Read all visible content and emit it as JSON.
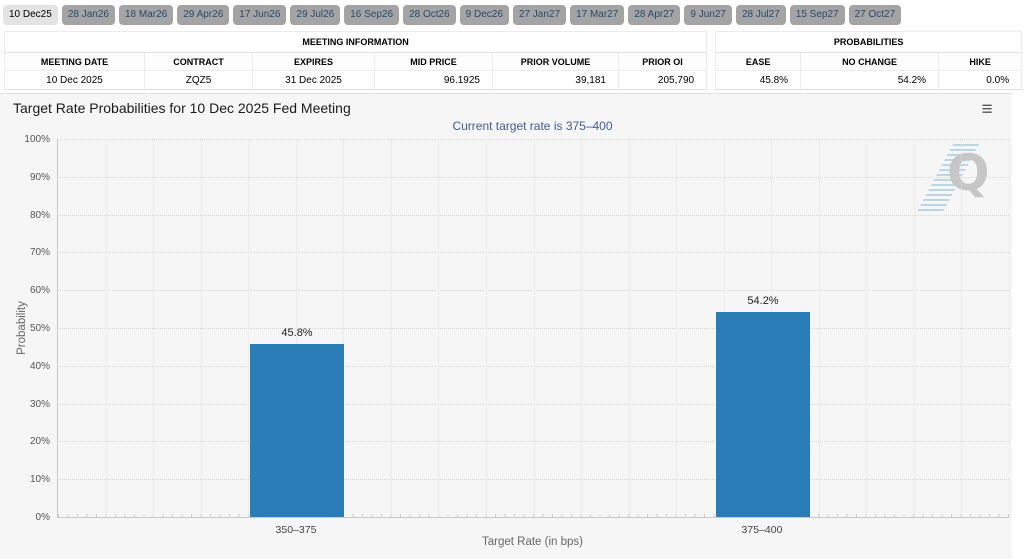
{
  "tabs": {
    "items": [
      {
        "label": "10 Dec25",
        "active": true
      },
      {
        "label": "28 Jan26",
        "active": false
      },
      {
        "label": "18 Mar26",
        "active": false
      },
      {
        "label": "29 Apr26",
        "active": false
      },
      {
        "label": "17 Jun26",
        "active": false
      },
      {
        "label": "29 Jul26",
        "active": false
      },
      {
        "label": "16 Sep26",
        "active": false
      },
      {
        "label": "28 Oct26",
        "active": false
      },
      {
        "label": "9 Dec26",
        "active": false
      },
      {
        "label": "27 Jan27",
        "active": false
      },
      {
        "label": "17 Mar27",
        "active": false
      },
      {
        "label": "28 Apr27",
        "active": false
      },
      {
        "label": "9 Jun27",
        "active": false
      },
      {
        "label": "28 Jul27",
        "active": false
      },
      {
        "label": "15 Sep27",
        "active": false
      },
      {
        "label": "27 Oct27",
        "active": false
      }
    ]
  },
  "meeting_info": {
    "group_label": "MEETING INFORMATION",
    "columns": [
      "MEETING DATE",
      "CONTRACT",
      "EXPIRES",
      "MID PRICE",
      "PRIOR VOLUME",
      "PRIOR OI"
    ],
    "values": [
      "10 Dec 2025",
      "ZQZ5",
      "31 Dec 2025",
      "96.1925",
      "39,181",
      "205,790"
    ]
  },
  "probabilities": {
    "group_label": "PROBABILITIES",
    "columns": [
      "EASE",
      "NO CHANGE",
      "HIKE"
    ],
    "values": [
      "45.8%",
      "54.2%",
      "0.0%"
    ]
  },
  "icons": {
    "chart_context_menu": "≡"
  },
  "colors": {
    "bar": "#2b7db8",
    "subtitle_text": "#3e5c96",
    "tab_inactive_bg": "#a4a4a4",
    "tab_active_bg": "#e3e3e3",
    "chart_bg": "#f6f6f6"
  },
  "chart_data": {
    "type": "bar",
    "title": "Target Rate Probabilities for 10 Dec 2025 Fed Meeting",
    "subtitle": "Current target rate is 375–400",
    "categories": [
      "350–375",
      "375–400"
    ],
    "values": [
      45.8,
      54.2
    ],
    "value_labels": [
      "45.8%",
      "54.2%"
    ],
    "xlabel": "Target Rate (in bps)",
    "ylabel": "Probability",
    "ylim": [
      0,
      100
    ],
    "ytick_step": 10,
    "ytick_suffix": "%",
    "grid": true,
    "legend_visible": false,
    "watermark": "Q"
  }
}
